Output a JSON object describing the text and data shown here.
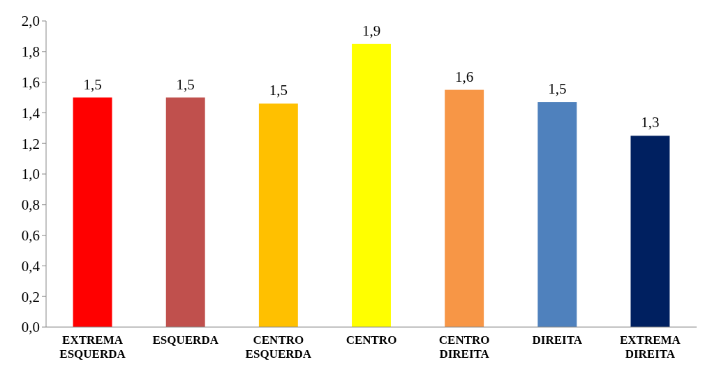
{
  "chart_data": {
    "type": "bar",
    "categories": [
      "EXTREMA ESQUERDA",
      "ESQUERDA",
      "CENTRO ESQUERDA",
      "CENTRO",
      "CENTRO DIREITA",
      "DIREITA",
      "EXTREMA DIREITA"
    ],
    "values": [
      1.5,
      1.5,
      1.46,
      1.85,
      1.55,
      1.47,
      1.25
    ],
    "colors": [
      "#ff0000",
      "#c0504d",
      "#ffc000",
      "#ffff00",
      "#f79646",
      "#4f81bd",
      "#002060"
    ],
    "value_labels": [
      "1,5",
      "1,5",
      "1,5",
      "1,9",
      "1,6",
      "1,5",
      "1,3"
    ],
    "ylim": [
      0,
      2
    ],
    "yticks": [
      {
        "value": 0,
        "label": "0,0"
      },
      {
        "value": 0.2,
        "label": "0,2"
      },
      {
        "value": 0.4,
        "label": "0,4"
      },
      {
        "value": 0.6,
        "label": "0,6"
      },
      {
        "value": 0.8,
        "label": "0,8"
      },
      {
        "value": 1,
        "label": "1,0"
      },
      {
        "value": 1.2,
        "label": "1,2"
      },
      {
        "value": 1.4,
        "label": "1,4"
      },
      {
        "value": 1.6,
        "label": "1,6"
      },
      {
        "value": 1.8,
        "label": "1,8"
      },
      {
        "value": 2,
        "label": "2,0"
      }
    ],
    "grid": false
  }
}
